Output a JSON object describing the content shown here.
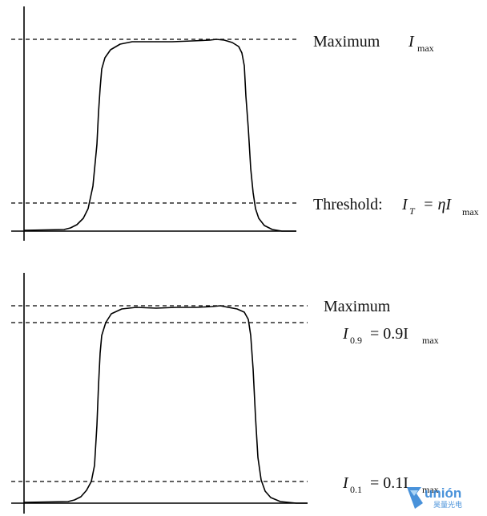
{
  "top_panel": {
    "max_label": "Maximum",
    "max_symbol": "I",
    "max_subscript": "max",
    "threshold_label": "Threshold:",
    "threshold_lhs": "I",
    "threshold_lhs_sub": "T",
    "threshold_rhs": "= ηI",
    "threshold_rhs_sub": "max"
  },
  "bottom_panel": {
    "max_label": "Maximum",
    "i09_symbol": "I",
    "i09_sub": "0.9",
    "i09_rhs": "= 0.9I",
    "i09_rhs_sub": "max",
    "i01_symbol": "I",
    "i01_sub": "0.1",
    "i01_rhs": "= 0.1I",
    "i01_rhs_sub": "max"
  },
  "watermark": {
    "brand": "unión",
    "sub": "昊量光电",
    "color": "#2a7fd4"
  }
}
